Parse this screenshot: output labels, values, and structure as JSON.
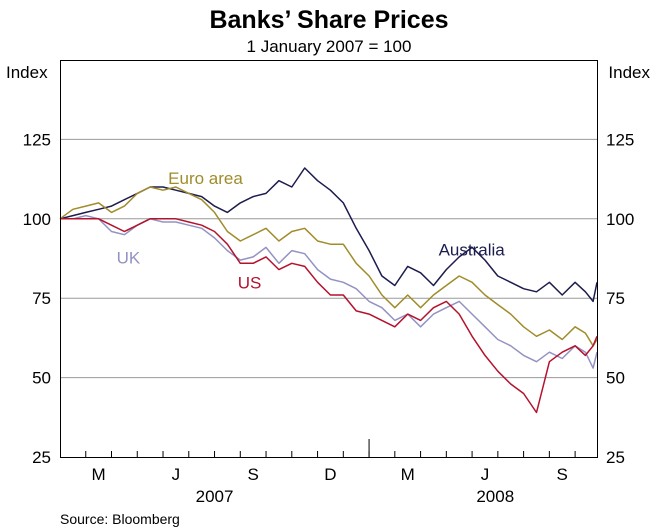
{
  "chart_data": {
    "type": "line",
    "title": "Banks’ Share Prices",
    "subtitle": "1 January 2007 = 100",
    "ylabel_left": "Index",
    "ylabel_right": "Index",
    "ylim": [
      25,
      150
    ],
    "yticks": [
      25,
      50,
      75,
      100,
      125
    ],
    "x_range_months": [
      0,
      8.75
    ],
    "x_month_ticks": [
      "M",
      "J",
      "S",
      "D",
      "M",
      "J",
      "S"
    ],
    "x_month_tick_positions": [
      2,
      5,
      8,
      11,
      14,
      17,
      20
    ],
    "x_years": [
      {
        "label": "2007",
        "center_month": 6
      },
      {
        "label": "2008",
        "center_month": 16.9
      }
    ],
    "x_year_divider_month": 12,
    "grid": true,
    "source": "Source: Bloomberg",
    "series": [
      {
        "name": "Australia",
        "color": "#1c1c4e",
        "label_month": 14.7,
        "label_value": 88.5,
        "x": [
          0,
          0.5,
          1,
          1.5,
          2,
          2.5,
          3,
          3.5,
          4,
          4.5,
          5,
          5.5,
          6,
          6.5,
          7,
          7.5,
          8,
          8.5,
          9,
          9.5,
          10,
          10.5,
          11,
          11.5,
          12,
          12.5,
          13,
          13.5,
          14,
          14.5,
          15,
          15.5,
          16,
          16.5,
          17,
          17.5,
          18,
          18.5,
          19,
          19.5,
          20,
          20.4,
          20.7,
          20.85
        ],
        "values": [
          100,
          101,
          102,
          103,
          104,
          106,
          108,
          110,
          110,
          109,
          108,
          107,
          104,
          102,
          105,
          107,
          108,
          112,
          110,
          116,
          112,
          109,
          105,
          97,
          90,
          82,
          79,
          85,
          83,
          79,
          84,
          88,
          91,
          87,
          82,
          80,
          78,
          77,
          80,
          76,
          80,
          77,
          74,
          80
        ]
      },
      {
        "name": "Euro area",
        "color": "#a08c2a",
        "label_month": 4.2,
        "label_value": 111,
        "x": [
          0,
          0.5,
          1,
          1.5,
          2,
          2.5,
          3,
          3.5,
          4,
          4.5,
          5,
          5.5,
          6,
          6.5,
          7,
          7.5,
          8,
          8.5,
          9,
          9.5,
          10,
          10.5,
          11,
          11.5,
          12,
          12.5,
          13,
          13.5,
          14,
          14.5,
          15,
          15.5,
          16,
          16.5,
          17,
          17.5,
          18,
          18.5,
          19,
          19.5,
          20,
          20.4,
          20.7,
          20.85
        ],
        "values": [
          100,
          103,
          104,
          105,
          102,
          104,
          108,
          110,
          109,
          110,
          108,
          106,
          102,
          96,
          93,
          95,
          97,
          93,
          96,
          97,
          93,
          92,
          92,
          86,
          82,
          76,
          72,
          76,
          72,
          76,
          79,
          82,
          80,
          76,
          73,
          70,
          66,
          63,
          65,
          62,
          66,
          64,
          60,
          62
        ]
      },
      {
        "name": "UK",
        "color": "#9393c2",
        "label_month": 2.2,
        "label_value": 86,
        "x": [
          0,
          0.5,
          1,
          1.5,
          2,
          2.5,
          3,
          3.5,
          4,
          4.5,
          5,
          5.5,
          6,
          6.5,
          7,
          7.5,
          8,
          8.5,
          9,
          9.5,
          10,
          10.5,
          11,
          11.5,
          12,
          12.5,
          13,
          13.5,
          14,
          14.5,
          15,
          15.5,
          16,
          16.5,
          17,
          17.5,
          18,
          18.5,
          19,
          19.5,
          20,
          20.4,
          20.7,
          20.85
        ],
        "values": [
          100,
          100,
          101,
          100,
          96,
          95,
          98,
          100,
          99,
          99,
          98,
          97,
          94,
          90,
          87,
          88,
          91,
          86,
          90,
          89,
          84,
          81,
          80,
          78,
          74,
          72,
          68,
          70,
          66,
          70,
          72,
          74,
          70,
          66,
          62,
          60,
          57,
          55,
          58,
          56,
          60,
          58,
          53,
          58
        ]
      },
      {
        "name": "US",
        "color": "#b4122d",
        "label_month": 6.9,
        "label_value": 78,
        "x": [
          0,
          0.5,
          1,
          1.5,
          2,
          2.5,
          3,
          3.5,
          4,
          4.5,
          5,
          5.5,
          6,
          6.5,
          7,
          7.5,
          8,
          8.5,
          9,
          9.5,
          10,
          10.5,
          11,
          11.5,
          12,
          12.5,
          13,
          13.5,
          14,
          14.5,
          15,
          15.5,
          16,
          16.5,
          17,
          17.5,
          18,
          18.5,
          19,
          19.5,
          20,
          20.4,
          20.7,
          20.85
        ],
        "values": [
          100,
          100,
          100,
          100,
          98,
          96,
          98,
          100,
          100,
          100,
          99,
          98,
          96,
          92,
          86,
          86,
          88,
          84,
          86,
          85,
          80,
          76,
          76,
          71,
          70,
          68,
          66,
          70,
          68,
          72,
          74,
          70,
          63,
          57,
          52,
          48,
          45,
          39,
          55,
          58,
          60,
          57,
          60,
          63
        ]
      }
    ]
  }
}
